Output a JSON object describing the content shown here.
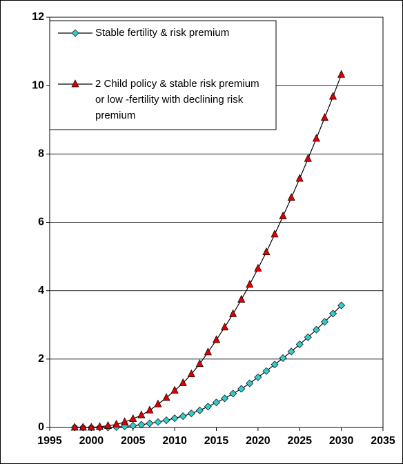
{
  "chart_data": {
    "type": "line",
    "x": [
      1998,
      1999,
      2000,
      2001,
      2002,
      2003,
      2004,
      2005,
      2006,
      2007,
      2008,
      2009,
      2010,
      2011,
      2012,
      2013,
      2014,
      2015,
      2016,
      2017,
      2018,
      2019,
      2020,
      2021,
      2022,
      2023,
      2024,
      2025,
      2026,
      2027,
      2028,
      2029,
      2030
    ],
    "series": [
      {
        "name": "Stable fertility & risk premium",
        "color": "#33cccc",
        "marker": "diamond",
        "values": [
          0,
          0,
          0,
          0,
          0,
          0.01,
          0.03,
          0.05,
          0.08,
          0.12,
          0.16,
          0.21,
          0.27,
          0.33,
          0.41,
          0.5,
          0.61,
          0.73,
          0.85,
          0.99,
          1.13,
          1.29,
          1.47,
          1.65,
          1.84,
          2.03,
          2.22,
          2.43,
          2.64,
          2.86,
          3.09,
          3.33,
          3.57
        ]
      },
      {
        "name": "2 Child policy & stable risk premium or low -fertility with declining risk premium",
        "color": "#dd0000",
        "marker": "triangle",
        "values": [
          0,
          0,
          0,
          0.02,
          0.05,
          0.09,
          0.16,
          0.25,
          0.36,
          0.5,
          0.68,
          0.87,
          1.08,
          1.3,
          1.56,
          1.86,
          2.2,
          2.56,
          2.93,
          3.32,
          3.74,
          4.18,
          4.65,
          5.13,
          5.65,
          6.18,
          6.72,
          7.28,
          7.86,
          8.45,
          9.06,
          9.68,
          10.32
        ]
      }
    ],
    "xlim": [
      1995,
      2035
    ],
    "xticks": [
      1995,
      2000,
      2005,
      2010,
      2015,
      2020,
      2025,
      2030,
      2035
    ],
    "ylim": [
      0,
      12
    ],
    "yticks": [
      0,
      2,
      4,
      6,
      8,
      10,
      12
    ],
    "grid": true,
    "legend": "top-left"
  }
}
